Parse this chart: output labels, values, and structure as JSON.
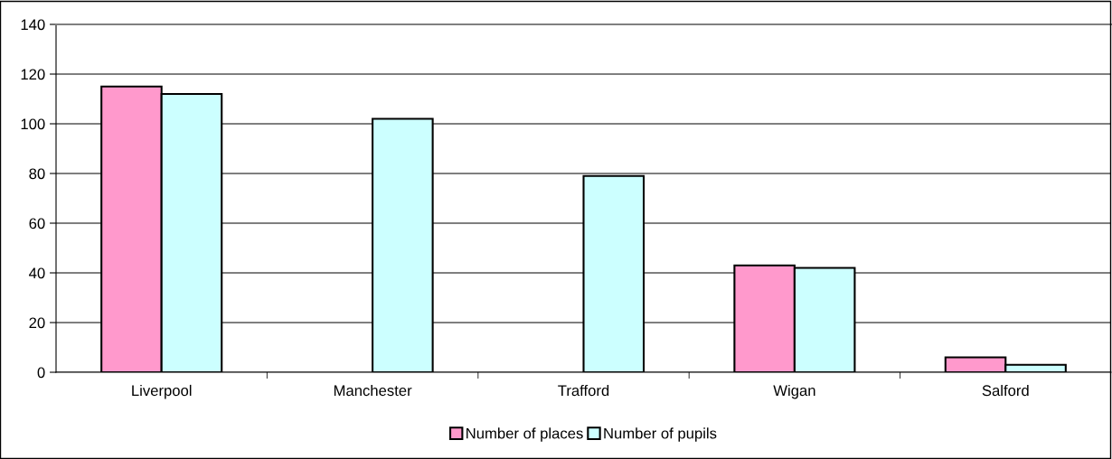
{
  "chart_data": {
    "type": "bar",
    "categories": [
      "Liverpool",
      "Manchester",
      "Trafford",
      "Wigan",
      "Salford"
    ],
    "series": [
      {
        "name": "Number of places",
        "color": "#ff99cc",
        "values": [
          115,
          null,
          null,
          43,
          6
        ]
      },
      {
        "name": "Number of pupils",
        "color": "#ccffff",
        "values": [
          112,
          102,
          79,
          42,
          3
        ]
      }
    ],
    "ylim": [
      0,
      140
    ],
    "yticks": [
      0,
      20,
      40,
      60,
      80,
      100,
      120,
      140
    ],
    "grid": "y",
    "legend": "bottom"
  }
}
